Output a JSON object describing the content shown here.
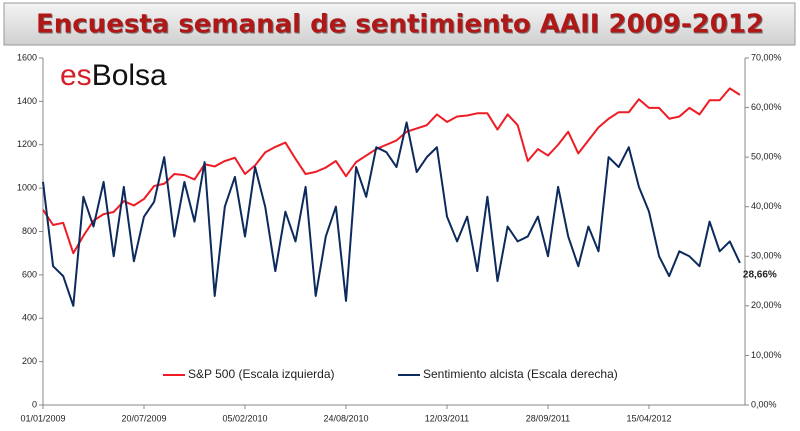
{
  "logo": {
    "prefix": "es",
    "name": "Bolsa"
  },
  "chart_data": {
    "type": "line",
    "title": "Encuesta  semanal  de sentimiento AAII 2009-2012",
    "categories": [
      "01/01/2009",
      null,
      null,
      null,
      null,
      null,
      null,
      null,
      null,
      null,
      "20/07/2009",
      null,
      null,
      null,
      null,
      null,
      null,
      null,
      null,
      null,
      "05/02/2010",
      null,
      null,
      null,
      null,
      null,
      null,
      null,
      null,
      null,
      "24/08/2010",
      null,
      null,
      null,
      null,
      null,
      null,
      null,
      null,
      null,
      "12/03/2011",
      null,
      null,
      null,
      null,
      null,
      null,
      null,
      null,
      null,
      "28/09/2011",
      null,
      null,
      null,
      null,
      null,
      null,
      null,
      null,
      null,
      "15/04/2012",
      null,
      null,
      null,
      null,
      null,
      null,
      null,
      null,
      null
    ],
    "series": [
      {
        "name": "S&P 500 (Escala izquierda)",
        "color": "#ee1c25",
        "axis": "y",
        "values": [
          900,
          830,
          840,
          700,
          780,
          850,
          880,
          890,
          940,
          920,
          950,
          1010,
          1020,
          1065,
          1060,
          1040,
          1110,
          1100,
          1125,
          1140,
          1065,
          1105,
          1165,
          1190,
          1210,
          1135,
          1065,
          1075,
          1095,
          1125,
          1055,
          1120,
          1150,
          1180,
          1200,
          1220,
          1260,
          1275,
          1290,
          1340,
          1305,
          1330,
          1335,
          1345,
          1345,
          1270,
          1340,
          1290,
          1125,
          1180,
          1150,
          1200,
          1260,
          1160,
          1220,
          1280,
          1320,
          1350,
          1350,
          1410,
          1370,
          1370,
          1320,
          1330,
          1370,
          1340,
          1405,
          1405,
          1460,
          1430
        ]
      },
      {
        "name": "Sentimiento alcista (Escala derecha)",
        "color": "#0d2a5c",
        "axis": "y2",
        "values": [
          45,
          28,
          26,
          20,
          42,
          36,
          45,
          30,
          44,
          29,
          38,
          41,
          50,
          34,
          45,
          37,
          49,
          22,
          40,
          46,
          34,
          48,
          40,
          27,
          39,
          33,
          44,
          22,
          34,
          40,
          21,
          48,
          42,
          52,
          51,
          48,
          57,
          47,
          50,
          52,
          38,
          33,
          38,
          27,
          42,
          25,
          36,
          33,
          34,
          38,
          30,
          44,
          34,
          28,
          36,
          31,
          50,
          48,
          52,
          44,
          39,
          30,
          26,
          31,
          30,
          28,
          37,
          31,
          33,
          28.66
        ],
        "value_labels": [
          null,
          null,
          null,
          null,
          null,
          null,
          null,
          null,
          null,
          null,
          null,
          null,
          null,
          null,
          null,
          null,
          null,
          null,
          null,
          null,
          null,
          null,
          null,
          null,
          null,
          null,
          null,
          null,
          null,
          null,
          null,
          null,
          null,
          null,
          null,
          null,
          null,
          null,
          null,
          null,
          null,
          null,
          null,
          null,
          null,
          null,
          null,
          null,
          null,
          null,
          null,
          null,
          null,
          null,
          null,
          null,
          null,
          null,
          null,
          null,
          null,
          null,
          null,
          null,
          null,
          null,
          null,
          null,
          null,
          "28,66%"
        ]
      }
    ],
    "ylim": [
      0,
      1600
    ],
    "yticks": [
      0,
      200,
      400,
      600,
      800,
      1000,
      1200,
      1400,
      1600
    ],
    "y2lim": [
      0,
      70
    ],
    "y2ticks": [
      {
        "value": 0,
        "label": "0,00%"
      },
      {
        "value": 10,
        "label": "10,00%"
      },
      {
        "value": 20,
        "label": "20,00%"
      },
      {
        "value": 30,
        "label": "30,00%"
      },
      {
        "value": 40,
        "label": "40,00%"
      },
      {
        "value": 50,
        "label": "50,00%"
      },
      {
        "value": 60,
        "label": "60,00%"
      },
      {
        "value": 70,
        "label": "70,00%"
      }
    ],
    "grid": false,
    "legend": "bottom"
  }
}
